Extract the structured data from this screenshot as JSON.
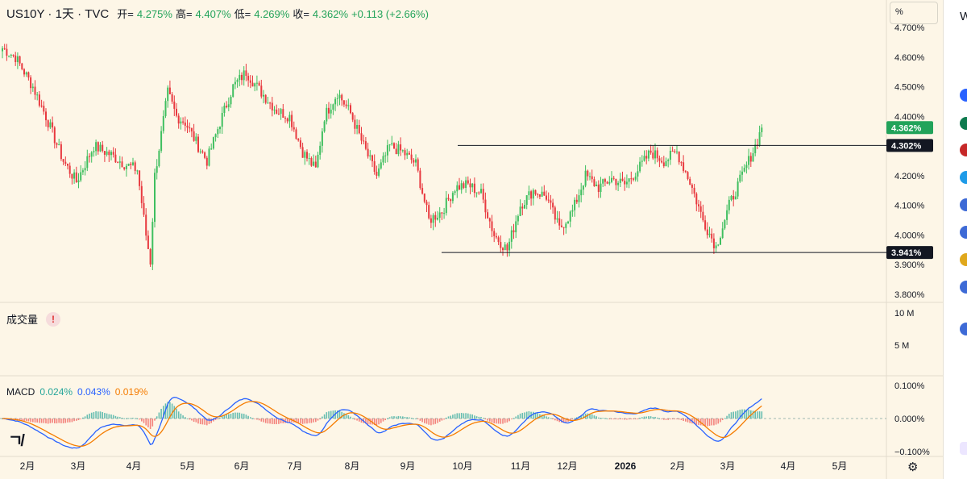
{
  "header": {
    "symbol": "US10Y · 1天 · TVC",
    "open_label": "开=",
    "open": "4.275%",
    "high_label": "高=",
    "high": "4.407%",
    "low_label": "低=",
    "low": "4.269%",
    "close_label": "收=",
    "close": "4.362%",
    "change": "+0.113 (+2.66%)"
  },
  "scale_button": "%",
  "volume": {
    "label": "成交量",
    "warning": "!",
    "ticks": [
      "10 M",
      "5 M"
    ]
  },
  "macd": {
    "label": "MACD",
    "v1": "0.024%",
    "v2": "0.043%",
    "v3": "0.019%",
    "ticks": [
      "0.100%",
      "0.000%",
      "−0.100%"
    ],
    "colors": {
      "macd": "#2962ff",
      "signal": "#f57c00",
      "hist_pos": "#26a69a",
      "hist_neg": "#ef5350"
    }
  },
  "chart_data": {
    "type": "candlestick",
    "y_ticks": [
      "4.700%",
      "4.600%",
      "4.500%",
      "4.400%",
      "4.300%",
      "4.200%",
      "4.100%",
      "4.000%",
      "3.900%",
      "3.800%"
    ],
    "ylim": [
      3.8,
      4.7
    ],
    "x_ticks": [
      "2月",
      "3月",
      "4月",
      "5月",
      "6月",
      "7月",
      "8月",
      "9月",
      "10月",
      "11月",
      "12月",
      "2026",
      "2月",
      "3月",
      "4月",
      "5月"
    ],
    "anchors": [
      [
        0,
        4.63
      ],
      [
        6,
        4.6
      ],
      [
        14,
        4.5
      ],
      [
        20,
        4.4
      ],
      [
        28,
        4.25
      ],
      [
        34,
        4.18
      ],
      [
        42,
        4.3
      ],
      [
        50,
        4.27
      ],
      [
        56,
        4.24
      ],
      [
        62,
        4.22
      ],
      [
        66,
        4.0
      ],
      [
        68,
        3.91
      ],
      [
        70,
        4.2
      ],
      [
        76,
        4.48
      ],
      [
        80,
        4.4
      ],
      [
        84,
        4.38
      ],
      [
        90,
        4.3
      ],
      [
        94,
        4.25
      ],
      [
        100,
        4.38
      ],
      [
        106,
        4.5
      ],
      [
        112,
        4.55
      ],
      [
        118,
        4.49
      ],
      [
        126,
        4.42
      ],
      [
        132,
        4.4
      ],
      [
        138,
        4.28
      ],
      [
        144,
        4.22
      ],
      [
        148,
        4.4
      ],
      [
        154,
        4.48
      ],
      [
        160,
        4.41
      ],
      [
        166,
        4.3
      ],
      [
        172,
        4.2
      ],
      [
        178,
        4.3
      ],
      [
        184,
        4.28
      ],
      [
        190,
        4.24
      ],
      [
        196,
        4.05
      ],
      [
        202,
        4.08
      ],
      [
        208,
        4.16
      ],
      [
        214,
        4.17
      ],
      [
        220,
        4.14
      ],
      [
        226,
        4.0
      ],
      [
        232,
        3.95
      ],
      [
        238,
        4.1
      ],
      [
        244,
        4.15
      ],
      [
        250,
        4.13
      ],
      [
        256,
        4.02
      ],
      [
        262,
        4.08
      ],
      [
        268,
        4.2
      ],
      [
        274,
        4.16
      ],
      [
        280,
        4.19
      ],
      [
        286,
        4.17
      ],
      [
        292,
        4.22
      ],
      [
        298,
        4.28
      ],
      [
        304,
        4.25
      ],
      [
        310,
        4.28
      ],
      [
        316,
        4.18
      ],
      [
        322,
        4.05
      ],
      [
        328,
        3.96
      ],
      [
        334,
        4.1
      ],
      [
        340,
        4.2
      ],
      [
        346,
        4.3
      ],
      [
        349,
        4.362
      ]
    ],
    "last_price": "4.362%",
    "levels": [
      {
        "value": 4.302,
        "label": "4.302%"
      },
      {
        "value": 3.941,
        "label": "3.941%"
      }
    ]
  }
}
